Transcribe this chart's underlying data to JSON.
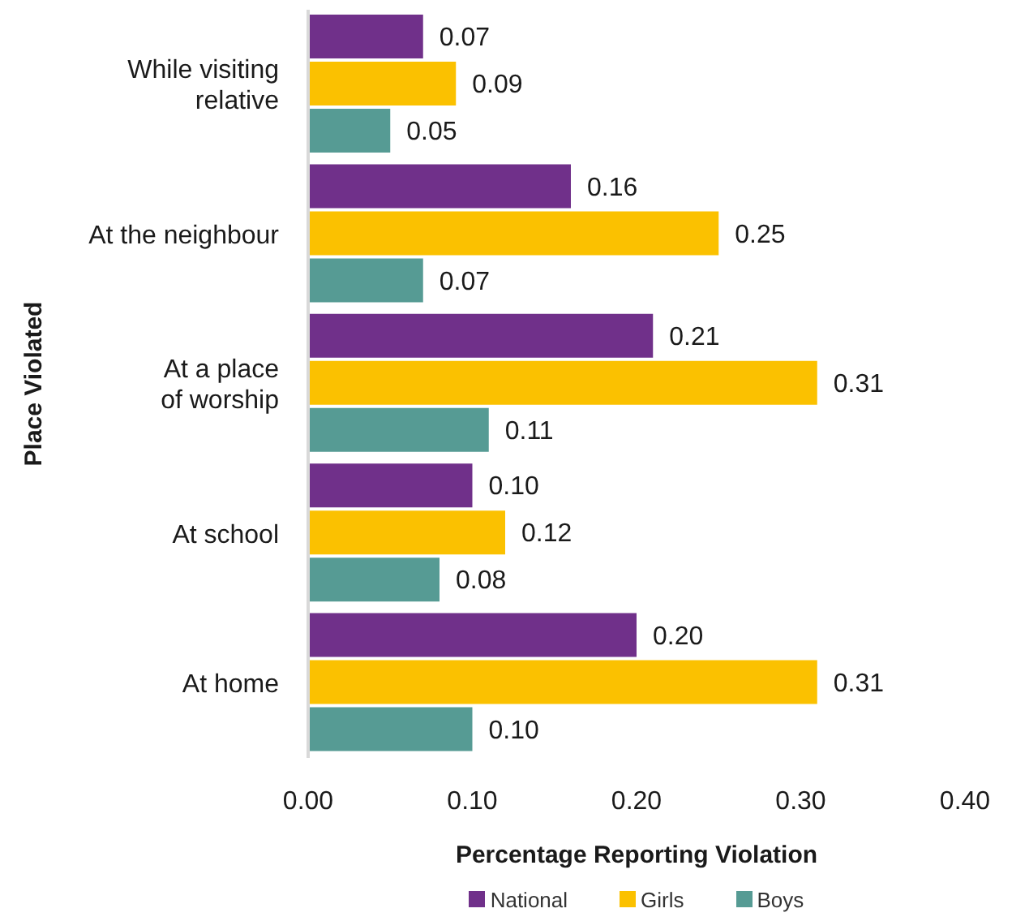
{
  "chart_data": {
    "type": "bar",
    "orientation": "horizontal",
    "xlabel": "Percentage Reporting Violation",
    "ylabel": "Place Violated",
    "categories": [
      "While visiting relative",
      "At the neighbour",
      "At a place of worship",
      "At school",
      "At home"
    ],
    "series": [
      {
        "name": "National",
        "color": "#70308a",
        "values": [
          0.07,
          0.16,
          0.21,
          0.1,
          0.2
        ],
        "value_labels": [
          "0.07",
          "0.16",
          "0.21",
          "0.10",
          "0.20"
        ]
      },
      {
        "name": "Girls",
        "color": "#fbc100",
        "values": [
          0.09,
          0.25,
          0.31,
          0.12,
          0.31
        ],
        "value_labels": [
          "0.09",
          "0.25",
          "0.31",
          "0.12",
          "0.31"
        ]
      },
      {
        "name": "Boys",
        "color": "#569b94",
        "values": [
          0.05,
          0.07,
          0.11,
          0.08,
          0.1
        ],
        "value_labels": [
          "0.05",
          "0.07",
          "0.11",
          "0.08",
          "0.10"
        ]
      }
    ],
    "xlim": [
      0,
      0.4
    ],
    "xticks": [
      {
        "value": 0,
        "label": "0.00"
      },
      {
        "value": 0.1,
        "label": "0.10"
      },
      {
        "value": 0.2,
        "label": "0.20"
      },
      {
        "value": 0.3,
        "label": "0.30"
      },
      {
        "value": 0.4,
        "label": "0.40"
      }
    ],
    "legend": "bottom"
  }
}
